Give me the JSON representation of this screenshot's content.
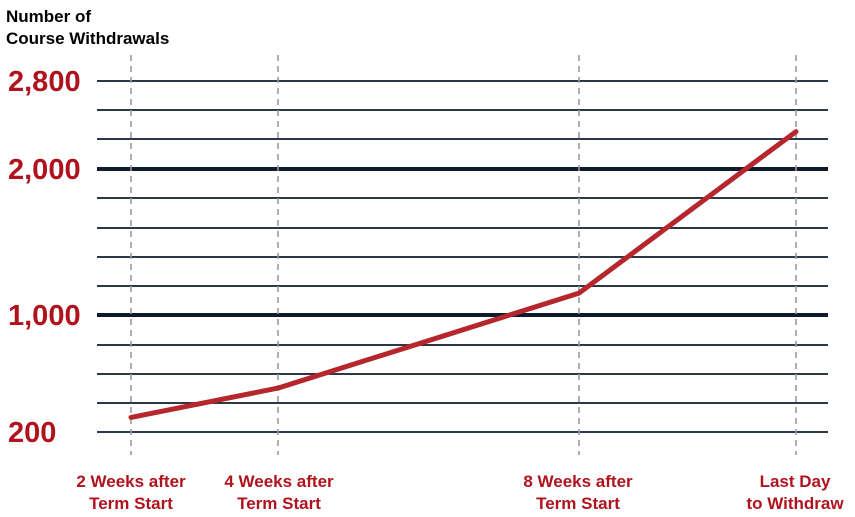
{
  "chart_data": {
    "type": "line",
    "ylabel": [
      "Number of",
      "Course Withdrawals"
    ],
    "categories": [
      [
        "2 Weeks after",
        "Term Start"
      ],
      [
        "4 Weeks after",
        "Term Start"
      ],
      [
        "8 Weeks after",
        "Term Start"
      ],
      [
        "Last Day",
        "to Withdraw"
      ]
    ],
    "x": [
      2,
      4,
      8,
      "Last Day"
    ],
    "values": [
      300,
      500,
      1150,
      2340
    ],
    "y_labeled_ticks": [
      "2,800",
      "2,000",
      "1,000",
      "200"
    ],
    "y_labeled_values": [
      2800,
      2000,
      1000,
      200
    ],
    "y_minor_ticks": [
      200,
      300,
      400,
      500,
      600,
      700,
      800,
      900,
      1000,
      1200,
      1400,
      1600,
      1800,
      2000,
      2400,
      2800
    ],
    "y_major_ticks": [
      1000,
      2000
    ],
    "ylim": [
      200,
      2800
    ],
    "grid": true,
    "colors": {
      "line": "#b5272d",
      "text": "#b0131e",
      "grid": "#0f1b2d",
      "vgrid": "#9a9a9a"
    }
  }
}
